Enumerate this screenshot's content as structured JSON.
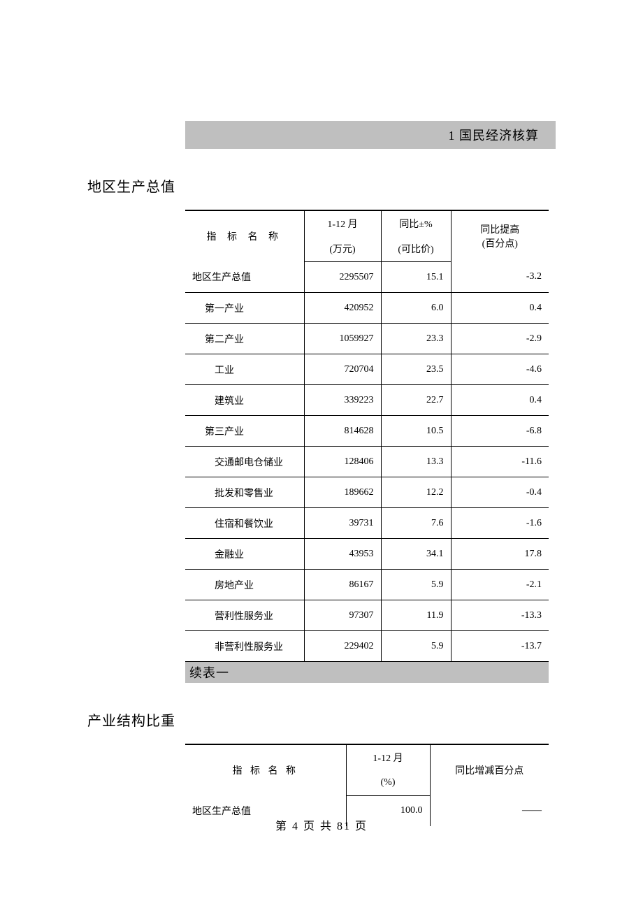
{
  "banner": {
    "text": "1 国民经济核算"
  },
  "section1": {
    "title": "地区生产总值",
    "columns": {
      "indicator_label": "指 标 名 称",
      "col1_top": "1-12 月",
      "col1_bottom": "(万元)",
      "col2_top": "同比±%",
      "col2_bottom": "(可比价)",
      "col3_top": "同比提高",
      "col3_bottom": "(百分点)"
    },
    "rows": [
      {
        "label": "地区生产总值",
        "indent": 0,
        "v1": "2295507",
        "v2": "15.1",
        "v3": "-3.2"
      },
      {
        "label": "第一产业",
        "indent": 1,
        "v1": "420952",
        "v2": "6.0",
        "v3": "0.4"
      },
      {
        "label": "第二产业",
        "indent": 1,
        "v1": "1059927",
        "v2": "23.3",
        "v3": "-2.9"
      },
      {
        "label": "工业",
        "indent": 2,
        "v1": "720704",
        "v2": "23.5",
        "v3": "-4.6"
      },
      {
        "label": "建筑业",
        "indent": 2,
        "v1": "339223",
        "v2": "22.7",
        "v3": "0.4"
      },
      {
        "label": "第三产业",
        "indent": 1,
        "v1": "814628",
        "v2": "10.5",
        "v3": "-6.8"
      },
      {
        "label": "交通邮电仓储业",
        "indent": 2,
        "v1": "128406",
        "v2": "13.3",
        "v3": "-11.6"
      },
      {
        "label": "批发和零售业",
        "indent": 2,
        "v1": "189662",
        "v2": "12.2",
        "v3": "-0.4"
      },
      {
        "label": "住宿和餐饮业",
        "indent": 2,
        "v1": "39731",
        "v2": "7.6",
        "v3": "-1.6"
      },
      {
        "label": "金融业",
        "indent": 2,
        "v1": "43953",
        "v2": "34.1",
        "v3": "17.8"
      },
      {
        "label": "房地产业",
        "indent": 2,
        "v1": "86167",
        "v2": "5.9",
        "v3": "-2.1"
      },
      {
        "label": "营利性服务业",
        "indent": 2,
        "v1": "97307",
        "v2": "11.9",
        "v3": "-13.3"
      },
      {
        "label": "非营利性服务业",
        "indent": 2,
        "v1": "229402",
        "v2": "5.9",
        "v3": "-13.7"
      }
    ],
    "continuation": "续表一"
  },
  "section2": {
    "title": "产业结构比重",
    "columns": {
      "indicator_label": "指 标 名 称",
      "col1_top": "1-12 月",
      "col1_bottom": "(%)",
      "col3": "同比增减百分点"
    },
    "rows": [
      {
        "label": "地区生产总值",
        "v1": "100.0",
        "v3": "——"
      }
    ]
  },
  "footer": {
    "text": "第 4 页 共 81 页"
  },
  "style": {
    "background": "#ffffff",
    "banner_bg": "#bfbfbf",
    "text_color": "#000000",
    "border_color": "#000000",
    "font_size_body": 14,
    "font_size_title": 20,
    "font_size_banner": 18,
    "font_size_footer": 16
  }
}
